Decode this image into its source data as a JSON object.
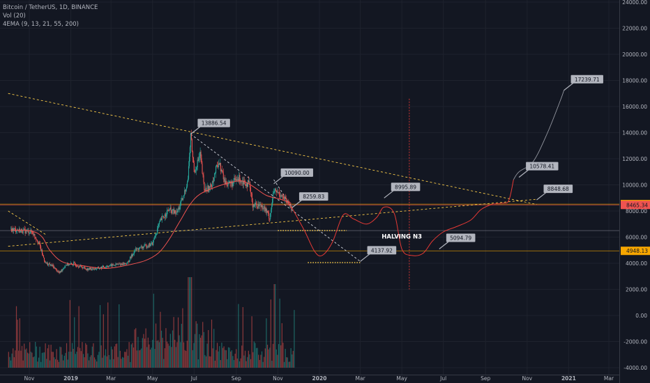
{
  "header": {
    "symbol_line": "Bitcoin / TetherUS, 1D, BINANCE",
    "vol_line": "Vol (20)",
    "ema_line": "4EMA (9, 13, 21, 55, 200)"
  },
  "chart_data": {
    "type": "line",
    "title": "Bitcoin / TetherUS, 1D, BINANCE",
    "y_axis": {
      "ticks": [
        24000,
        22000,
        20000,
        18000,
        16000,
        14000,
        12000,
        10000,
        8000,
        6000,
        4000,
        2000,
        0,
        -2000,
        -4000
      ],
      "tick_labels": [
        "24000.00",
        "22000.00",
        "20000.00",
        "18000.00",
        "16000.00",
        "14000.00",
        "12000.00",
        "10000.00",
        "8000.00",
        "6000.00",
        "4000.00",
        "2000.00",
        "0.00",
        "-2000.00",
        "-4000.00"
      ],
      "range": [
        -4000,
        24000
      ]
    },
    "x_axis": {
      "tick_labels": [
        "Nov",
        "2019",
        "Mar",
        "May",
        "Jul",
        "Sep",
        "Nov",
        "2020",
        "Mar",
        "May",
        "Jul",
        "Sep",
        "Nov",
        "2021",
        "Mar"
      ],
      "tick_dates": [
        "2018-11-01",
        "2019-01-01",
        "2019-03-01",
        "2019-05-01",
        "2019-07-01",
        "2019-09-01",
        "2019-11-01",
        "2020-01-01",
        "2020-03-01",
        "2020-05-01",
        "2020-07-01",
        "2020-09-01",
        "2020-11-01",
        "2021-01-01",
        "2021-03-01"
      ]
    },
    "price_series": [
      [
        "2018-10-05",
        6600
      ],
      [
        "2018-10-20",
        6500
      ],
      [
        "2018-11-05",
        6400
      ],
      [
        "2018-11-15",
        5600
      ],
      [
        "2018-11-20",
        4700
      ],
      [
        "2018-11-25",
        4000
      ],
      [
        "2018-12-05",
        3800
      ],
      [
        "2018-12-15",
        3250
      ],
      [
        "2018-12-25",
        3900
      ],
      [
        "2019-01-05",
        3950
      ],
      [
        "2019-01-25",
        3550
      ],
      [
        "2019-02-10",
        3600
      ],
      [
        "2019-02-25",
        3800
      ],
      [
        "2019-03-10",
        3900
      ],
      [
        "2019-03-25",
        4000
      ],
      [
        "2019-04-05",
        5000
      ],
      [
        "2019-04-20",
        5300
      ],
      [
        "2019-05-01",
        5500
      ],
      [
        "2019-05-12",
        7200
      ],
      [
        "2019-05-25",
        8100
      ],
      [
        "2019-06-05",
        7800
      ],
      [
        "2019-06-15",
        9000
      ],
      [
        "2019-06-22",
        10500
      ],
      [
        "2019-06-26",
        13800
      ],
      [
        "2019-07-01",
        11000
      ],
      [
        "2019-07-10",
        12300
      ],
      [
        "2019-07-16",
        9600
      ],
      [
        "2019-07-25",
        9800
      ],
      [
        "2019-08-06",
        11800
      ],
      [
        "2019-08-15",
        10200
      ],
      [
        "2019-08-25",
        10100
      ],
      [
        "2019-09-05",
        10500
      ],
      [
        "2019-09-20",
        10000
      ],
      [
        "2019-09-25",
        8500
      ],
      [
        "2019-10-10",
        8400
      ],
      [
        "2019-10-20",
        7500
      ],
      [
        "2019-10-26",
        9500
      ],
      [
        "2019-11-05",
        9300
      ],
      [
        "2019-11-15",
        8600
      ],
      [
        "2019-11-22",
        8259.83
      ]
    ],
    "ema_series": [
      [
        "2018-10-05",
        6550
      ],
      [
        "2018-11-05",
        6450
      ],
      [
        "2018-11-20",
        6000
      ],
      [
        "2018-12-01",
        5000
      ],
      [
        "2018-12-20",
        4100
      ],
      [
        "2019-01-20",
        3800
      ],
      [
        "2019-02-20",
        3600
      ],
      [
        "2019-03-20",
        3800
      ],
      [
        "2019-04-20",
        4200
      ],
      [
        "2019-05-10",
        4800
      ],
      [
        "2019-05-25",
        5800
      ],
      [
        "2019-06-10",
        7200
      ],
      [
        "2019-06-25",
        8500
      ],
      [
        "2019-07-10",
        9300
      ],
      [
        "2019-08-05",
        9900
      ],
      [
        "2019-08-25",
        10200
      ],
      [
        "2019-09-10",
        10300
      ],
      [
        "2019-09-25",
        9900
      ],
      [
        "2019-10-15",
        9200
      ],
      [
        "2019-11-05",
        8900
      ],
      [
        "2019-11-20",
        8600
      ]
    ],
    "projection": [
      [
        "2019-11-20",
        8400
      ],
      [
        "2019-12-10",
        6500
      ],
      [
        "2019-12-25",
        4900
      ],
      [
        "2020-01-05",
        4600
      ],
      [
        "2020-01-20",
        5600
      ],
      [
        "2020-02-05",
        7700
      ],
      [
        "2020-02-20",
        7400
      ],
      [
        "2020-03-10",
        7000
      ],
      [
        "2020-03-25",
        7500
      ],
      [
        "2020-04-05",
        8300
      ],
      [
        "2020-04-20",
        7800
      ],
      [
        "2020-05-01",
        5100
      ],
      [
        "2020-05-15",
        4600
      ],
      [
        "2020-06-01",
        4750
      ],
      [
        "2020-06-15",
        5700
      ],
      [
        "2020-07-01",
        6400
      ],
      [
        "2020-07-20",
        6800
      ],
      [
        "2020-08-10",
        7300
      ],
      [
        "2020-08-25",
        8100
      ],
      [
        "2020-09-10",
        8500
      ],
      [
        "2020-09-25",
        8600
      ],
      [
        "2020-10-05",
        8800
      ],
      [
        "2020-10-12",
        10400
      ],
      [
        "2020-10-20",
        11000
      ],
      [
        "2020-11-10",
        11800
      ],
      [
        "2020-12-01",
        14000
      ],
      [
        "2020-12-20",
        16500
      ],
      [
        "2020-12-25",
        17239.71
      ]
    ],
    "horizontal_levels": [
      {
        "value": 8527.39,
        "label": "8527.39",
        "color": "#f7a600"
      },
      {
        "value": 8465.34,
        "label": "8465.34",
        "color": "#ef5350"
      },
      {
        "value": 4948.13,
        "label": "4948.13",
        "color": "#f7a600"
      },
      {
        "value": 6500,
        "label": "",
        "color": "#787b86"
      }
    ],
    "callouts": [
      {
        "label": "13886.54",
        "date": "2019-06-26",
        "value": 13886.54
      },
      {
        "label": "10090.00",
        "date": "2019-10-26",
        "value": 10090
      },
      {
        "label": "8259.83",
        "date": "2019-11-22",
        "value": 8259.83
      },
      {
        "label": "8995.89",
        "date": "2020-04-05",
        "value": 8995.89
      },
      {
        "label": "4137.92",
        "date": "2020-03-01",
        "value": 4137.92
      },
      {
        "label": "5094.79",
        "date": "2020-06-25",
        "value": 5094.79
      },
      {
        "label": "10578.41",
        "date": "2020-10-20",
        "value": 10578.41
      },
      {
        "label": "8848.68",
        "date": "2020-11-15",
        "value": 8848.68
      },
      {
        "label": "17239.71",
        "date": "2020-12-25",
        "value": 17239.71
      }
    ],
    "annotation_text": "HALVING N3",
    "halving_date": "2020-05-12",
    "colors": {
      "background": "#131722",
      "up": "#26a69a",
      "down": "#ef5350",
      "ema": "#ef5350",
      "projection": "#e53935",
      "final_leg": "#9598a1",
      "trend": "#f7c948",
      "triangle": "#d1d4dc",
      "grid": "#1e222d"
    }
  }
}
